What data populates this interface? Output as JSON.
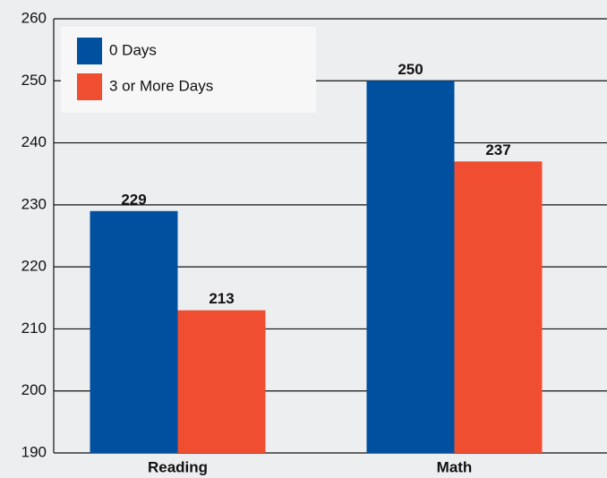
{
  "chart_data": {
    "type": "bar",
    "categories": [
      "Reading",
      "Math"
    ],
    "series": [
      {
        "name": "0 Days",
        "color": "#0050a0",
        "values": [
          229,
          250
        ]
      },
      {
        "name": "3 or More Days",
        "color": "#ef4e30",
        "values": [
          213,
          237
        ]
      }
    ],
    "ylim": [
      190,
      260
    ],
    "yticks": [
      190,
      200,
      210,
      220,
      230,
      240,
      250,
      260
    ],
    "grid": true,
    "legend": "upper left"
  }
}
